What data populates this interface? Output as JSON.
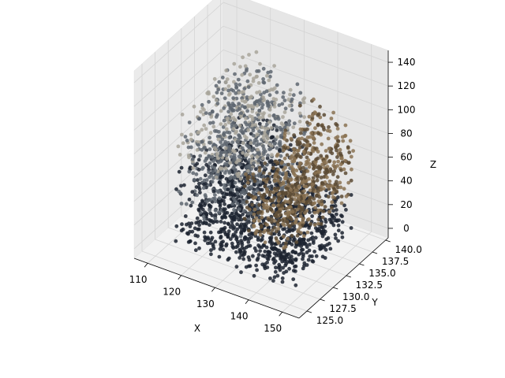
{
  "chart_data": {
    "type": "scatter",
    "projection": "3d",
    "title": "",
    "xlabel": "X",
    "ylabel": "Y",
    "zlabel": "Z",
    "xlim": [
      106,
      155
    ],
    "ylim": [
      123.5,
      140.5
    ],
    "zlim": [
      -8,
      150
    ],
    "xticks": [
      110,
      120,
      130,
      140,
      150
    ],
    "xtick_labels": [
      "110",
      "120",
      "130",
      "140",
      "150"
    ],
    "yticks": [
      125.0,
      127.5,
      130.0,
      132.5,
      135.0,
      137.5,
      140.0
    ],
    "ytick_labels": [
      "125.0",
      "127.5",
      "130.0",
      "132.5",
      "135.0",
      "137.5",
      "140.0"
    ],
    "zticks": [
      0,
      20,
      40,
      60,
      80,
      100,
      120,
      140
    ],
    "ztick_labels": [
      "0",
      "20",
      "40",
      "60",
      "80",
      "100",
      "120",
      "140"
    ],
    "grid": true,
    "legend": "none",
    "point_cloud": {
      "description_of_shape": "dense blob of voxel points",
      "x_range": [
        114,
        150
      ],
      "y_range": [
        125,
        139
      ],
      "z_range": [
        0,
        120
      ],
      "colors": {
        "dark": "#1c2330",
        "mid_gray": "#5e6670",
        "light_gray": "#a8a49a",
        "tan": "#8a7252",
        "brown": "#5a4a34"
      }
    }
  }
}
